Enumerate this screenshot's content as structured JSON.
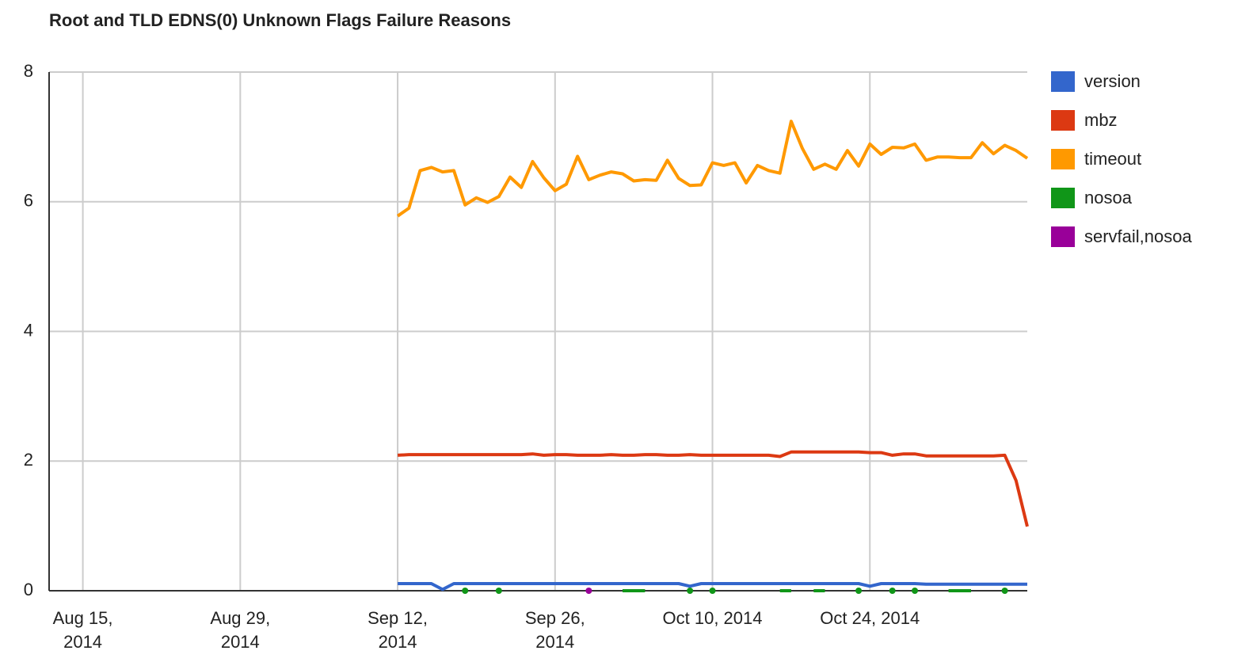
{
  "chart_data": {
    "type": "line",
    "title": "Root and TLD EDNS(0) Unknown Flags Failure Reasons",
    "x": [
      "2014-09-12",
      "2014-09-13",
      "2014-09-14",
      "2014-09-15",
      "2014-09-16",
      "2014-09-17",
      "2014-09-18",
      "2014-09-19",
      "2014-09-20",
      "2014-09-21",
      "2014-09-22",
      "2014-09-23",
      "2014-09-24",
      "2014-09-25",
      "2014-09-26",
      "2014-09-27",
      "2014-09-28",
      "2014-09-29",
      "2014-09-30",
      "2014-10-01",
      "2014-10-02",
      "2014-10-03",
      "2014-10-04",
      "2014-10-05",
      "2014-10-06",
      "2014-10-07",
      "2014-10-08",
      "2014-10-09",
      "2014-10-10",
      "2014-10-11",
      "2014-10-12",
      "2014-10-13",
      "2014-10-14",
      "2014-10-15",
      "2014-10-16",
      "2014-10-17",
      "2014-10-18",
      "2014-10-19",
      "2014-10-20",
      "2014-10-21",
      "2014-10-22",
      "2014-10-23",
      "2014-10-24",
      "2014-10-25",
      "2014-10-26",
      "2014-10-27",
      "2014-10-28",
      "2014-10-29",
      "2014-10-30",
      "2014-10-31",
      "2014-11-01",
      "2014-11-02",
      "2014-11-03",
      "2014-11-04",
      "2014-11-05",
      "2014-11-06",
      "2014-11-07"
    ],
    "series": [
      {
        "name": "version",
        "color": "#3366cc",
        "values": [
          0.11,
          0.11,
          0.11,
          0.11,
          0.02,
          0.11,
          0.11,
          0.11,
          0.11,
          0.11,
          0.11,
          0.11,
          0.11,
          0.11,
          0.11,
          0.11,
          0.11,
          0.11,
          0.11,
          0.11,
          0.11,
          0.11,
          0.11,
          0.11,
          0.11,
          0.11,
          0.07,
          0.11,
          0.11,
          0.11,
          0.11,
          0.11,
          0.11,
          0.11,
          0.11,
          0.11,
          0.11,
          0.11,
          0.11,
          0.11,
          0.11,
          0.11,
          0.07,
          0.11,
          0.11,
          0.11,
          0.11,
          0.1,
          0.1,
          0.1,
          0.1,
          0.1,
          0.1,
          0.1,
          0.1,
          0.1,
          0.1
        ]
      },
      {
        "name": "mbz",
        "color": "#dc3912",
        "values": [
          2.09,
          2.1,
          2.1,
          2.1,
          2.1,
          2.1,
          2.1,
          2.1,
          2.1,
          2.1,
          2.1,
          2.1,
          2.11,
          2.09,
          2.1,
          2.1,
          2.09,
          2.09,
          2.09,
          2.1,
          2.09,
          2.09,
          2.1,
          2.1,
          2.09,
          2.09,
          2.1,
          2.09,
          2.09,
          2.09,
          2.09,
          2.09,
          2.09,
          2.09,
          2.07,
          2.14,
          2.14,
          2.14,
          2.14,
          2.14,
          2.14,
          2.14,
          2.13,
          2.13,
          2.09,
          2.11,
          2.11,
          2.08,
          2.08,
          2.08,
          2.08,
          2.08,
          2.08,
          2.08,
          2.09,
          1.7,
          0.99
        ]
      },
      {
        "name": "timeout",
        "color": "#ff9900",
        "values": [
          5.78,
          5.9,
          6.48,
          6.53,
          6.46,
          6.48,
          5.95,
          6.06,
          5.99,
          6.08,
          6.38,
          6.22,
          6.62,
          6.37,
          6.17,
          6.27,
          6.7,
          6.34,
          6.41,
          6.46,
          6.43,
          6.32,
          6.34,
          6.33,
          6.64,
          6.36,
          6.25,
          6.26,
          6.6,
          6.56,
          6.6,
          6.29,
          6.56,
          6.48,
          6.44,
          7.24,
          6.82,
          6.5,
          6.58,
          6.5,
          6.79,
          6.55,
          6.89,
          6.73,
          6.84,
          6.83,
          6.89,
          6.64,
          6.69,
          6.69,
          6.68,
          6.68,
          6.91,
          6.74,
          6.87,
          6.79,
          6.67
        ]
      },
      {
        "name": "nosoa",
        "color": "#109618",
        "values": [
          null,
          null,
          null,
          null,
          null,
          null,
          0,
          null,
          null,
          0,
          null,
          null,
          null,
          null,
          null,
          null,
          null,
          null,
          null,
          null,
          0,
          0,
          0,
          null,
          null,
          null,
          0,
          null,
          0,
          null,
          null,
          null,
          null,
          null,
          0,
          0,
          null,
          0,
          0,
          null,
          null,
          0,
          null,
          null,
          0,
          null,
          0,
          null,
          null,
          0,
          0,
          0,
          null,
          null,
          0,
          null,
          null
        ]
      },
      {
        "name": "servfail,nosoa",
        "color": "#990099",
        "values": [
          null,
          null,
          null,
          null,
          null,
          null,
          null,
          null,
          null,
          null,
          null,
          null,
          null,
          null,
          null,
          null,
          null,
          0,
          null,
          null,
          null,
          null,
          null,
          null,
          null,
          null,
          null,
          null,
          null,
          null,
          null,
          null,
          null,
          null,
          null,
          null,
          null,
          null,
          null,
          null,
          null,
          null,
          null,
          null,
          null,
          null,
          null,
          null,
          null,
          null,
          null,
          null,
          null,
          null,
          null,
          null,
          null
        ]
      }
    ],
    "xlim": [
      "2014-08-12",
      "2014-11-07"
    ],
    "xticks": [
      {
        "value": "2014-08-15",
        "label": "Aug 15, 2014"
      },
      {
        "value": "2014-08-29",
        "label": "Aug 29, 2014"
      },
      {
        "value": "2014-09-12",
        "label": "Sep 12, 2014"
      },
      {
        "value": "2014-09-26",
        "label": "Sep 26, 2014"
      },
      {
        "value": "2014-10-10",
        "label": "Oct 10, 2014"
      },
      {
        "value": "2014-10-24",
        "label": "Oct 24, 2014"
      }
    ],
    "ylim": [
      0,
      8
    ],
    "yticks": [
      0,
      2,
      4,
      6,
      8
    ],
    "grid": true,
    "legend": "right"
  }
}
